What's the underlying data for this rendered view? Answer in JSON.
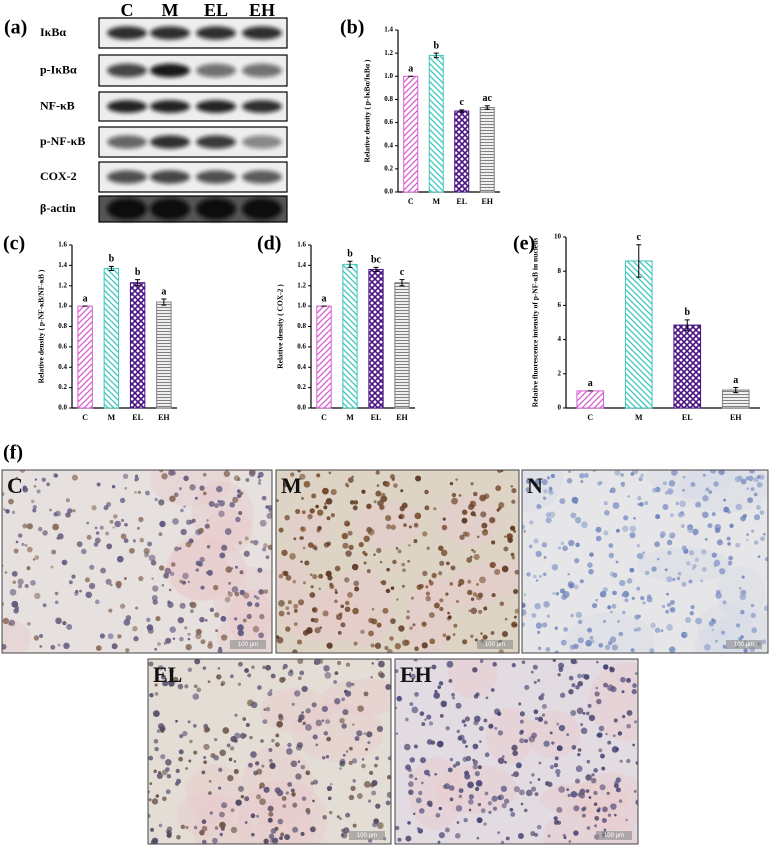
{
  "panel_labels": [
    "(a)",
    "(b)",
    "(c)",
    "(d)",
    "(e)",
    "(f)"
  ],
  "blot": {
    "columns": [
      "C",
      "M",
      "EL",
      "EH"
    ],
    "rows": [
      "IκBα",
      "p-IκBα",
      "NF-κB",
      "p-NF-κB",
      "COX-2",
      "β-actin"
    ]
  },
  "micrographs": [
    {
      "label": "C",
      "scale": "100 μm"
    },
    {
      "label": "M",
      "scale": "100 μm"
    },
    {
      "label": "N",
      "scale": "100 μm"
    },
    {
      "label": "EL",
      "scale": "100 μm"
    },
    {
      "label": "EH",
      "scale": "100 μm"
    }
  ],
  "chart_data": [
    {
      "type": "bar",
      "ylabel": "Relative density ( p-IκBα/IκBα )",
      "categories": [
        "C",
        "M",
        "EL",
        "EH"
      ],
      "values": [
        1.0,
        1.18,
        0.7,
        0.73
      ],
      "errors": [
        0,
        0.02,
        0.01,
        0.015
      ],
      "letters": [
        "a",
        "b",
        "c",
        "ac"
      ],
      "colors": [
        "#d45fd0",
        "#3cc6bd",
        "#4a1385",
        "#808080"
      ],
      "hatches": [
        "/",
        "\\",
        "x",
        "-"
      ],
      "ylim": [
        0,
        1.4
      ],
      "yticks": [
        {
          "value": 0,
          "label": "0.0"
        },
        {
          "value": 0.2,
          "label": "0.2"
        },
        {
          "value": 0.4,
          "label": "0.4"
        },
        {
          "value": 0.6,
          "label": "0.6"
        },
        {
          "value": 0.8,
          "label": "0.8"
        },
        {
          "value": 1,
          "label": "1.0"
        },
        {
          "value": 1.2,
          "label": "1.2"
        },
        {
          "value": 1.4,
          "label": "1.4"
        }
      ]
    },
    {
      "type": "bar",
      "ylabel": "Relative density ( p-NF-κB/NF-κB )",
      "categories": [
        "C",
        "M",
        "EL",
        "EH"
      ],
      "values": [
        1.0,
        1.37,
        1.23,
        1.04
      ],
      "errors": [
        0,
        0.02,
        0.03,
        0.03
      ],
      "letters": [
        "a",
        "b",
        "b",
        "a"
      ],
      "colors": [
        "#d45fd0",
        "#3cc6bd",
        "#4a1385",
        "#808080"
      ],
      "hatches": [
        "/",
        "\\",
        "x",
        "-"
      ],
      "ylim": [
        0,
        1.6
      ],
      "yticks": [
        {
          "value": 0,
          "label": "0.0"
        },
        {
          "value": 0.2,
          "label": "0.2"
        },
        {
          "value": 0.4,
          "label": "0.4"
        },
        {
          "value": 0.6,
          "label": "0.6"
        },
        {
          "value": 0.8,
          "label": "0.8"
        },
        {
          "value": 1,
          "label": "1.0"
        },
        {
          "value": 1.2,
          "label": "1.2"
        },
        {
          "value": 1.4,
          "label": "1.4"
        },
        {
          "value": 1.6,
          "label": "1.6"
        }
      ]
    },
    {
      "type": "bar",
      "ylabel": "Relative density ( COX-2 )",
      "categories": [
        "C",
        "M",
        "EL",
        "EH"
      ],
      "values": [
        1.0,
        1.41,
        1.36,
        1.23
      ],
      "errors": [
        0,
        0.03,
        0.02,
        0.03
      ],
      "letters": [
        "a",
        "b",
        "bc",
        "c"
      ],
      "colors": [
        "#d45fd0",
        "#3cc6bd",
        "#4a1385",
        "#808080"
      ],
      "hatches": [
        "/",
        "\\",
        "x",
        "-"
      ],
      "ylim": [
        0,
        1.6
      ],
      "yticks": [
        {
          "value": 0,
          "label": "0.0"
        },
        {
          "value": 0.2,
          "label": "0.2"
        },
        {
          "value": 0.4,
          "label": "0.4"
        },
        {
          "value": 0.6,
          "label": "0.6"
        },
        {
          "value": 0.8,
          "label": "0.8"
        },
        {
          "value": 1,
          "label": "1.0"
        },
        {
          "value": 1.2,
          "label": "1.2"
        },
        {
          "value": 1.4,
          "label": "1.4"
        },
        {
          "value": 1.6,
          "label": "1.6"
        }
      ]
    },
    {
      "type": "bar",
      "ylabel": "Relative fluorescence intensity of p-NF-κB in nucleus",
      "categories": [
        "C",
        "M",
        "EL",
        "EH"
      ],
      "values": [
        1.0,
        8.6,
        4.85,
        1.05
      ],
      "errors": [
        0,
        0.95,
        0.3,
        0.15
      ],
      "letters": [
        "a",
        "c",
        "b",
        "a"
      ],
      "colors": [
        "#d45fd0",
        "#3cc6bd",
        "#4a1385",
        "#808080"
      ],
      "hatches": [
        "/",
        "\\",
        "x",
        "-"
      ],
      "ylim": [
        0,
        10
      ],
      "yticks": [
        0,
        2,
        4,
        6,
        8,
        10
      ]
    }
  ]
}
